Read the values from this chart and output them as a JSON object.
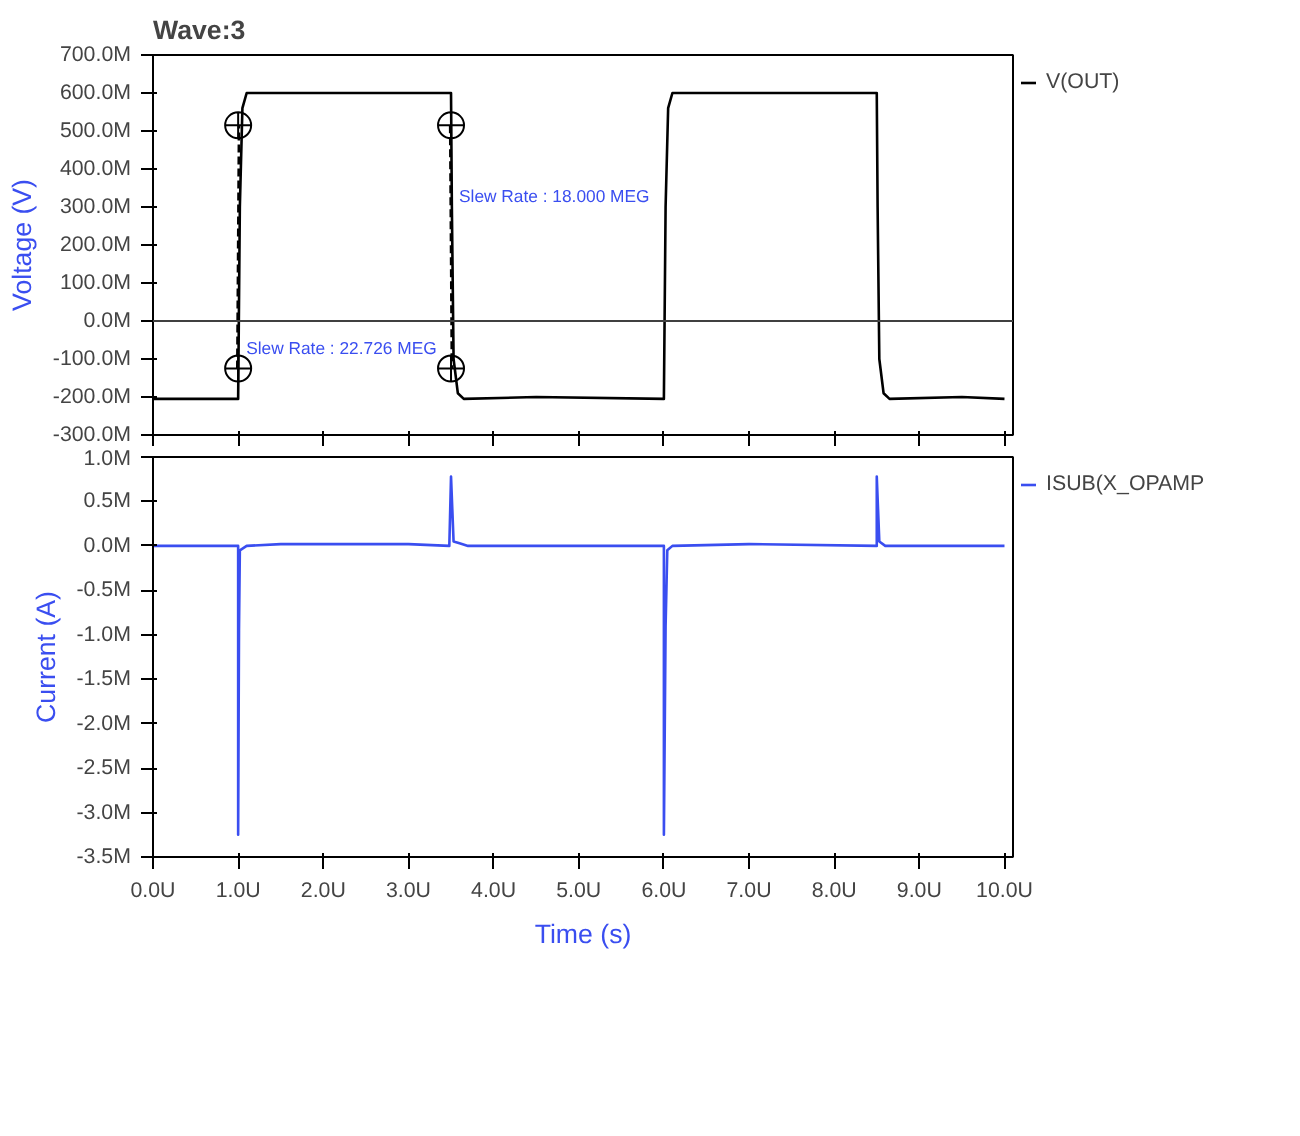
{
  "chart_data": [
    {
      "type": "line",
      "title": "Wave:3",
      "ylabel": "Voltage (V)",
      "xlim": [
        0,
        10.1
      ],
      "tick_labels": "y",
      "ylim": [
        -300,
        700
      ],
      "yticks": [
        {
          "value": 700,
          "label": "700.0M"
        },
        {
          "value": 600,
          "label": "600.0M"
        },
        {
          "value": 500,
          "label": "500.0M"
        },
        {
          "value": 400,
          "label": "400.0M"
        },
        {
          "value": 300,
          "label": "300.0M"
        },
        {
          "value": 200,
          "label": "200.0M"
        },
        {
          "value": 100,
          "label": "100.0M"
        },
        {
          "value": 0,
          "label": "0.0M"
        },
        {
          "value": -100,
          "label": "-100.0M"
        },
        {
          "value": -200,
          "label": "-200.0M"
        },
        {
          "value": -300,
          "label": "-300.0M"
        }
      ],
      "legend": "top right",
      "ref_lines": [
        {
          "axis": "y",
          "value": 0,
          "color": "#404040"
        }
      ],
      "series": [
        {
          "name": "V(OUT)",
          "color": "#000000",
          "x": [
            0,
            1.0,
            1.02,
            1.05,
            1.1,
            3.5,
            3.51,
            3.53,
            3.58,
            3.65,
            4.5,
            6.0,
            6.02,
            6.05,
            6.1,
            8.5,
            8.51,
            8.53,
            8.58,
            8.65,
            9.5,
            10.0
          ],
          "values": [
            -205,
            -205,
            300,
            560,
            600,
            600,
            300,
            -100,
            -190,
            -205,
            -200,
            -205,
            300,
            560,
            600,
            600,
            300,
            -100,
            -190,
            -205,
            -200,
            -205
          ]
        },
        {
          "type": "line",
          "line_style": "dashed",
          "color": "#000000",
          "x": [
            0.99,
            1.01
          ],
          "values": [
            -125,
            515
          ]
        },
        {
          "type": "line",
          "line_style": "dashed",
          "color": "#000000",
          "x": [
            3.49,
            3.51
          ],
          "values": [
            515,
            -125
          ]
        },
        {
          "type": "scatter",
          "marker": "circle",
          "color": "#000000",
          "x": [
            1.0,
            1.0,
            3.5,
            3.5
          ],
          "values": [
            515,
            -125,
            515,
            -125
          ]
        }
      ],
      "annotations": [
        {
          "text": "Slew Rate : 22.726 MEG",
          "x": 1.0,
          "y": -70
        },
        {
          "text": "Slew Rate : 18.000 MEG",
          "x": 3.5,
          "y": 330
        }
      ]
    },
    {
      "type": "line",
      "ylabel": "Current (A)",
      "xlabel": "Time (s)",
      "xlim": [
        0,
        10.1
      ],
      "xticks": [
        {
          "value": 0,
          "label": "0.0U"
        },
        {
          "value": 1,
          "label": "1.0U"
        },
        {
          "value": 2,
          "label": "2.0U"
        },
        {
          "value": 3,
          "label": "3.0U"
        },
        {
          "value": 4,
          "label": "4.0U"
        },
        {
          "value": 5,
          "label": "5.0U"
        },
        {
          "value": 6,
          "label": "6.0U"
        },
        {
          "value": 7,
          "label": "7.0U"
        },
        {
          "value": 8,
          "label": "8.0U"
        },
        {
          "value": 9,
          "label": "9.0U"
        },
        {
          "value": 10,
          "label": "10.0U"
        }
      ],
      "ylim": [
        -3.5,
        1.0
      ],
      "yticks": [
        {
          "value": 1.0,
          "label": "1.0M"
        },
        {
          "value": 0.5,
          "label": "0.5M"
        },
        {
          "value": 0,
          "label": "0.0M"
        },
        {
          "value": -0.5,
          "label": "-0.5M"
        },
        {
          "value": -1.0,
          "label": "-1.0M"
        },
        {
          "value": -1.5,
          "label": "-1.5M"
        },
        {
          "value": -2.0,
          "label": "-2.0M"
        },
        {
          "value": -2.5,
          "label": "-2.5M"
        },
        {
          "value": -3.0,
          "label": "-3.0M"
        },
        {
          "value": -3.5,
          "label": "-3.5M"
        }
      ],
      "legend": "top right",
      "series": [
        {
          "name": "ISUB(X_OPAMP",
          "color": "#3a4ef0",
          "x": [
            0,
            1.0,
            1.0,
            1.01,
            1.02,
            1.1,
            1.5,
            3.0,
            3.48,
            3.5,
            3.53,
            3.6,
            3.7,
            4.0,
            6.0,
            6.0,
            6.02,
            6.04,
            6.1,
            7.0,
            8.5,
            8.5,
            8.53,
            8.6,
            10.0
          ],
          "values": [
            0,
            0,
            -3.25,
            -0.95,
            -0.05,
            0,
            0.02,
            0.02,
            0,
            0.78,
            0.05,
            0.03,
            0,
            0,
            0,
            -3.25,
            -0.9,
            -0.05,
            0,
            0.02,
            0,
            0.78,
            0.05,
            0,
            0
          ]
        }
      ]
    }
  ]
}
